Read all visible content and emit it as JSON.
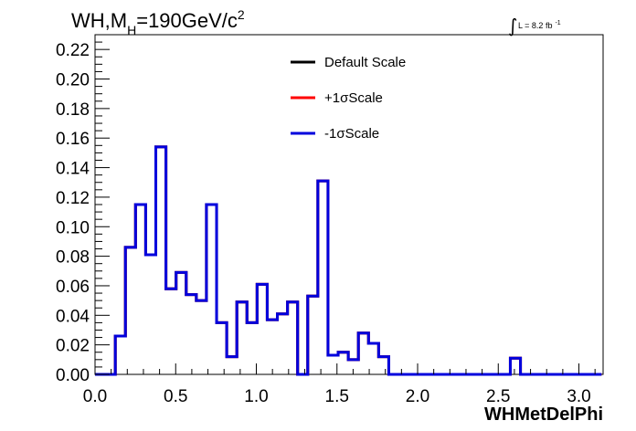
{
  "chart_data": {
    "type": "histogram",
    "title": {
      "prefix": "WH,M",
      "sub": "H",
      "rest": "=190GeV/c",
      "sup": "2"
    },
    "lumi": {
      "integral": "∫",
      "text": "L = 8.2 fb",
      "sup": "-1"
    },
    "xlabel": "WHMetDelPhi",
    "xlim": [
      0,
      3.15
    ],
    "ylim": [
      0,
      0.23
    ],
    "x_ticks": [
      "0.0",
      "0.5",
      "1.0",
      "1.5",
      "2.0",
      "2.5",
      "3.0"
    ],
    "x_tick_values": [
      0,
      0.5,
      1.0,
      1.5,
      2.0,
      2.5,
      3.0
    ],
    "y_ticks": [
      "0.00",
      "0.02",
      "0.04",
      "0.06",
      "0.08",
      "0.10",
      "0.12",
      "0.14",
      "0.16",
      "0.18",
      "0.20",
      "0.22"
    ],
    "y_tick_values": [
      0,
      0.02,
      0.04,
      0.06,
      0.08,
      0.1,
      0.12,
      0.14,
      0.16,
      0.18,
      0.2,
      0.22
    ],
    "bin_width": 0.0628,
    "bin_start": 0,
    "series": [
      {
        "name": "Default Scale",
        "color": "#000000",
        "values": [
          0,
          0,
          0.026,
          0.086,
          0.115,
          0.081,
          0.154,
          0.058,
          0.069,
          0.054,
          0.05,
          0.115,
          0.035,
          0.012,
          0.049,
          0.035,
          0.061,
          0.037,
          0.041,
          0.049,
          0,
          0.053,
          0.131,
          0.013,
          0.015,
          0.01,
          0.028,
          0.021,
          0.012,
          0,
          0,
          0,
          0,
          0,
          0,
          0,
          0,
          0,
          0,
          0,
          0,
          0.011,
          0,
          0,
          0,
          0,
          0,
          0,
          0,
          0
        ]
      },
      {
        "name": "+1σScale",
        "color": "#ff0000",
        "values": [
          0,
          0,
          0.026,
          0.086,
          0.115,
          0.081,
          0.154,
          0.058,
          0.069,
          0.054,
          0.05,
          0.115,
          0.035,
          0.012,
          0.049,
          0.035,
          0.061,
          0.037,
          0.041,
          0.049,
          0,
          0.053,
          0.131,
          0.013,
          0.015,
          0.01,
          0.028,
          0.021,
          0.012,
          0,
          0,
          0,
          0,
          0,
          0,
          0,
          0,
          0,
          0,
          0,
          0,
          0.011,
          0,
          0,
          0,
          0,
          0,
          0,
          0,
          0
        ]
      },
      {
        "name": "-1σScale",
        "color": "#0000dd",
        "values": [
          0,
          0,
          0.026,
          0.086,
          0.115,
          0.081,
          0.154,
          0.058,
          0.069,
          0.054,
          0.05,
          0.115,
          0.035,
          0.012,
          0.049,
          0.035,
          0.061,
          0.037,
          0.041,
          0.049,
          0,
          0.053,
          0.131,
          0.013,
          0.015,
          0.01,
          0.028,
          0.021,
          0.012,
          0,
          0,
          0,
          0,
          0,
          0,
          0,
          0,
          0,
          0,
          0,
          0,
          0.011,
          0,
          0,
          0,
          0,
          0,
          0,
          0,
          0
        ]
      }
    ],
    "legend_position": "top-center",
    "grid": false
  }
}
